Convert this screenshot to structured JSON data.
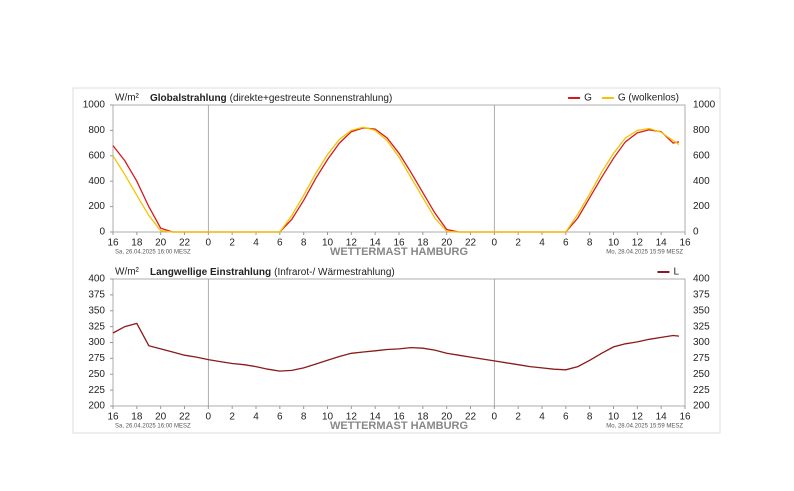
{
  "chart_data": [
    {
      "type": "line",
      "unit": "W/m²",
      "title": "Globalstrahlung",
      "subtitle": "(direkte+gestreute Sonnenstrahlung)",
      "footer_left": "Sa, 26.04.2025 16:00 MESZ",
      "footer_center": "WETTERMAST HAMBURG",
      "footer_right": "Mo, 28.04.2025 15:59 MESZ",
      "x": [
        0,
        1,
        2,
        3,
        4,
        5,
        6,
        7,
        8,
        9,
        10,
        11,
        12,
        13,
        14,
        15,
        16,
        17,
        18,
        19,
        20,
        21,
        22,
        23,
        24,
        25,
        26,
        27,
        28,
        29,
        30,
        31,
        32,
        33,
        34,
        35,
        36,
        37,
        38,
        39,
        40,
        41,
        42,
        43,
        44,
        45,
        46,
        47,
        47.5
      ],
      "series": [
        {
          "name": "G",
          "color": "#d7191c",
          "values": [
            680,
            560,
            400,
            200,
            30,
            0,
            0,
            0,
            0,
            0,
            0,
            0,
            0,
            0,
            0,
            100,
            250,
            420,
            570,
            700,
            790,
            820,
            810,
            740,
            620,
            470,
            310,
            150,
            20,
            0,
            0,
            0,
            0,
            0,
            0,
            0,
            0,
            0,
            0,
            110,
            270,
            430,
            580,
            710,
            780,
            805,
            790,
            700,
            710
          ]
        },
        {
          "name": "G (wolkenlos)",
          "color": "#f2c500",
          "values": [
            600,
            450,
            290,
            130,
            10,
            0,
            0,
            0,
            0,
            0,
            0,
            0,
            0,
            0,
            0,
            130,
            290,
            460,
            610,
            730,
            800,
            825,
            800,
            720,
            590,
            430,
            270,
            110,
            5,
            0,
            0,
            0,
            0,
            0,
            0,
            0,
            0,
            0,
            0,
            140,
            300,
            470,
            620,
            740,
            800,
            815,
            785,
            720,
            690
          ]
        }
      ],
      "xlim": [
        0,
        48
      ],
      "xticks": [
        {
          "value": 0,
          "label": "16"
        },
        {
          "value": 2,
          "label": "18"
        },
        {
          "value": 4,
          "label": "20"
        },
        {
          "value": 6,
          "label": "22"
        },
        {
          "value": 8,
          "label": "0"
        },
        {
          "value": 10,
          "label": "2"
        },
        {
          "value": 12,
          "label": "4"
        },
        {
          "value": 14,
          "label": "6"
        },
        {
          "value": 16,
          "label": "8"
        },
        {
          "value": 18,
          "label": "10"
        },
        {
          "value": 20,
          "label": "12"
        },
        {
          "value": 22,
          "label": "14"
        },
        {
          "value": 24,
          "label": "16"
        },
        {
          "value": 26,
          "label": "18"
        },
        {
          "value": 28,
          "label": "20"
        },
        {
          "value": 30,
          "label": "22"
        },
        {
          "value": 32,
          "label": "0"
        },
        {
          "value": 34,
          "label": "2"
        },
        {
          "value": 36,
          "label": "4"
        },
        {
          "value": 38,
          "label": "6"
        },
        {
          "value": 40,
          "label": "8"
        },
        {
          "value": 42,
          "label": "10"
        },
        {
          "value": 44,
          "label": "12"
        },
        {
          "value": 46,
          "label": "14"
        },
        {
          "value": 48,
          "label": "16"
        }
      ],
      "day_lines": [
        8,
        32
      ],
      "ylim": [
        0,
        1000
      ],
      "yticks": [
        0,
        200,
        400,
        600,
        800,
        1000
      ],
      "legend": "top-right"
    },
    {
      "type": "line",
      "unit": "W/m²",
      "title": "Langwellige Einstrahlung",
      "subtitle": "(Infrarot-/ Wärmestrahlung)",
      "footer_left": "Sa, 26.04.2025 16:00 MESZ",
      "footer_center": "WETTERMAST HAMBURG",
      "footer_right": "Mo, 28.04.2025 15:59 MESZ",
      "x": [
        0,
        1,
        2,
        3,
        4,
        5,
        6,
        7,
        8,
        9,
        10,
        11,
        12,
        13,
        14,
        15,
        16,
        17,
        18,
        19,
        20,
        21,
        22,
        23,
        24,
        25,
        26,
        27,
        28,
        29,
        30,
        31,
        32,
        33,
        34,
        35,
        36,
        37,
        38,
        39,
        40,
        41,
        42,
        43,
        44,
        45,
        46,
        47,
        47.5
      ],
      "series": [
        {
          "name": "L",
          "color": "#8b1a1a",
          "values": [
            315,
            325,
            330,
            295,
            290,
            285,
            280,
            277,
            273,
            270,
            267,
            265,
            262,
            258,
            255,
            256,
            260,
            266,
            272,
            278,
            283,
            285,
            287,
            289,
            290,
            292,
            291,
            288,
            283,
            280,
            277,
            274,
            271,
            268,
            265,
            262,
            260,
            258,
            257,
            262,
            272,
            283,
            293,
            298,
            301,
            305,
            308,
            311,
            310
          ]
        }
      ],
      "xlim": [
        0,
        48
      ],
      "xticks": [
        {
          "value": 0,
          "label": "16"
        },
        {
          "value": 2,
          "label": "18"
        },
        {
          "value": 4,
          "label": "20"
        },
        {
          "value": 6,
          "label": "22"
        },
        {
          "value": 8,
          "label": "0"
        },
        {
          "value": 10,
          "label": "2"
        },
        {
          "value": 12,
          "label": "4"
        },
        {
          "value": 14,
          "label": "6"
        },
        {
          "value": 16,
          "label": "8"
        },
        {
          "value": 18,
          "label": "10"
        },
        {
          "value": 20,
          "label": "12"
        },
        {
          "value": 22,
          "label": "14"
        },
        {
          "value": 24,
          "label": "16"
        },
        {
          "value": 26,
          "label": "18"
        },
        {
          "value": 28,
          "label": "20"
        },
        {
          "value": 30,
          "label": "22"
        },
        {
          "value": 32,
          "label": "0"
        },
        {
          "value": 34,
          "label": "2"
        },
        {
          "value": 36,
          "label": "4"
        },
        {
          "value": 38,
          "label": "6"
        },
        {
          "value": 40,
          "label": "8"
        },
        {
          "value": 42,
          "label": "10"
        },
        {
          "value": 44,
          "label": "12"
        },
        {
          "value": 46,
          "label": "14"
        },
        {
          "value": 48,
          "label": "16"
        }
      ],
      "day_lines": [
        8,
        32
      ],
      "ylim": [
        200,
        400
      ],
      "yticks": [
        200,
        225,
        250,
        275,
        300,
        325,
        350,
        375,
        400
      ],
      "legend": "top-right"
    }
  ]
}
